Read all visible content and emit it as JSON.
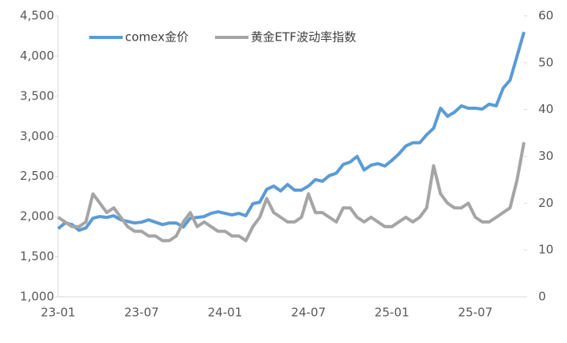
{
  "chart_data": {
    "type": "line",
    "categories": [
      "23-01",
      null,
      null,
      null,
      null,
      null,
      null,
      null,
      null,
      null,
      null,
      null,
      "23-07",
      null,
      null,
      null,
      null,
      null,
      null,
      null,
      null,
      null,
      null,
      null,
      "24-01",
      null,
      null,
      null,
      null,
      null,
      null,
      null,
      null,
      null,
      null,
      null,
      "24-07",
      null,
      null,
      null,
      null,
      null,
      null,
      null,
      null,
      null,
      null,
      null,
      "25-01",
      null,
      null,
      null,
      null,
      null,
      null,
      null,
      null,
      null,
      null,
      null,
      "25-07",
      null,
      null,
      null,
      null,
      null,
      null,
      null
    ],
    "series": [
      {
        "name": "comex金价",
        "color": "#5b9bd5",
        "axis": "y",
        "values": [
          1850,
          1920,
          1900,
          1830,
          1860,
          1980,
          2000,
          1990,
          2010,
          1960,
          1940,
          1920,
          1930,
          1960,
          1930,
          1900,
          1920,
          1920,
          1870,
          1980,
          1990,
          2000,
          2040,
          2060,
          2040,
          2020,
          2040,
          2010,
          2160,
          2180,
          2340,
          2380,
          2320,
          2400,
          2330,
          2330,
          2380,
          2460,
          2440,
          2510,
          2540,
          2650,
          2680,
          2750,
          2580,
          2640,
          2660,
          2630,
          2700,
          2780,
          2880,
          2920,
          2920,
          3020,
          3100,
          3350,
          3250,
          3300,
          3380,
          3350,
          3350,
          3340,
          3400,
          3380,
          3600,
          3700,
          4000,
          4300
        ]
      },
      {
        "name": "黄金ETF波动率指数",
        "color": "#a5a5a5",
        "axis": "y2",
        "values": [
          17,
          16,
          15,
          15,
          16,
          22,
          20,
          18,
          19,
          17,
          15,
          14,
          14,
          13,
          13,
          12,
          12,
          13,
          16,
          18,
          15,
          16,
          15,
          14,
          14,
          13,
          13,
          12,
          15,
          17,
          21,
          18,
          17,
          16,
          16,
          17,
          22,
          18,
          18,
          17,
          16,
          19,
          19,
          17,
          16,
          17,
          16,
          15,
          15,
          16,
          17,
          16,
          17,
          19,
          28,
          22,
          20,
          19,
          19,
          20,
          17,
          16,
          16,
          17,
          18,
          19,
          25,
          33
        ]
      }
    ],
    "ylim": [
      1000,
      4500
    ],
    "yticks": [
      {
        "value": 1000,
        "label": "1,000"
      },
      {
        "value": 1500,
        "label": "1,500"
      },
      {
        "value": 2000,
        "label": "2,000"
      },
      {
        "value": 2500,
        "label": "2,500"
      },
      {
        "value": 3000,
        "label": "3,000"
      },
      {
        "value": 3500,
        "label": "3,500"
      },
      {
        "value": 4000,
        "label": "4,000"
      },
      {
        "value": 4500,
        "label": "4,500"
      }
    ],
    "y2lim": [
      0,
      60
    ],
    "y2ticks": [
      0,
      10,
      20,
      30,
      40,
      50,
      60
    ],
    "legend": "top"
  }
}
